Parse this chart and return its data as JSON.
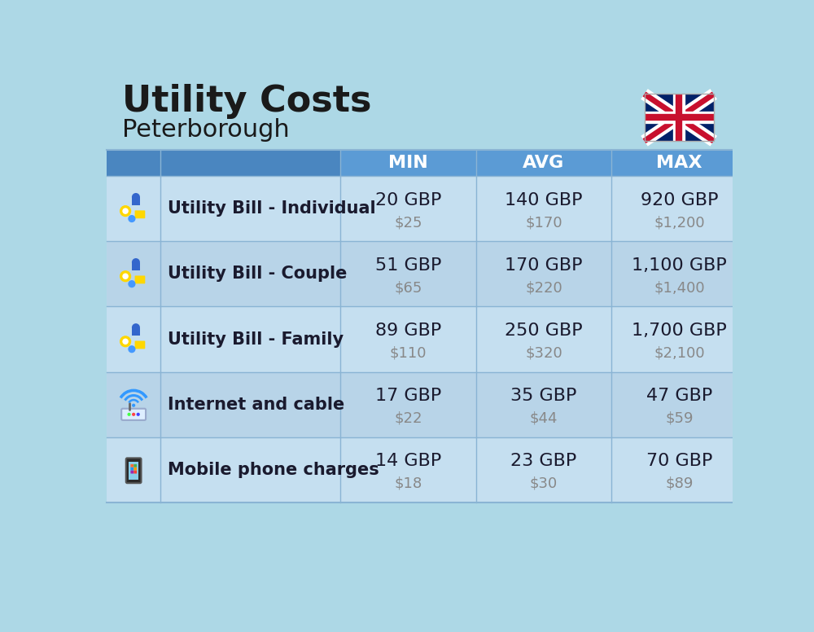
{
  "title": "Utility Costs",
  "subtitle": "Peterborough",
  "background_color": "#ADD8E6",
  "header_bg_color": "#5B9BD5",
  "header_dark_bg_color": "#4A86C0",
  "header_text_color": "#FFFFFF",
  "row_bg_color_light": "#C5DFF0",
  "row_bg_color_dark": "#B8D4E8",
  "cell_line_color": "#8AB4D4",
  "col_headers": [
    "MIN",
    "AVG",
    "MAX"
  ],
  "rows": [
    {
      "label": "Utility Bill - Individual",
      "icon": "utility",
      "min_gbp": "20 GBP",
      "min_usd": "$25",
      "avg_gbp": "140 GBP",
      "avg_usd": "$170",
      "max_gbp": "920 GBP",
      "max_usd": "$1,200"
    },
    {
      "label": "Utility Bill - Couple",
      "icon": "utility",
      "min_gbp": "51 GBP",
      "min_usd": "$65",
      "avg_gbp": "170 GBP",
      "avg_usd": "$220",
      "max_gbp": "1,100 GBP",
      "max_usd": "$1,400"
    },
    {
      "label": "Utility Bill - Family",
      "icon": "utility",
      "min_gbp": "89 GBP",
      "min_usd": "$110",
      "avg_gbp": "250 GBP",
      "avg_usd": "$320",
      "max_gbp": "1,700 GBP",
      "max_usd": "$2,100"
    },
    {
      "label": "Internet and cable",
      "icon": "internet",
      "min_gbp": "17 GBP",
      "min_usd": "$22",
      "avg_gbp": "35 GBP",
      "avg_usd": "$44",
      "max_gbp": "47 GBP",
      "max_usd": "$59"
    },
    {
      "label": "Mobile phone charges",
      "icon": "mobile",
      "min_gbp": "14 GBP",
      "min_usd": "$18",
      "avg_gbp": "23 GBP",
      "avg_usd": "$30",
      "max_gbp": "70 GBP",
      "max_usd": "$89"
    }
  ],
  "title_fontsize": 32,
  "subtitle_fontsize": 22,
  "header_fontsize": 16,
  "label_fontsize": 15,
  "value_fontsize": 16,
  "usd_fontsize": 13
}
